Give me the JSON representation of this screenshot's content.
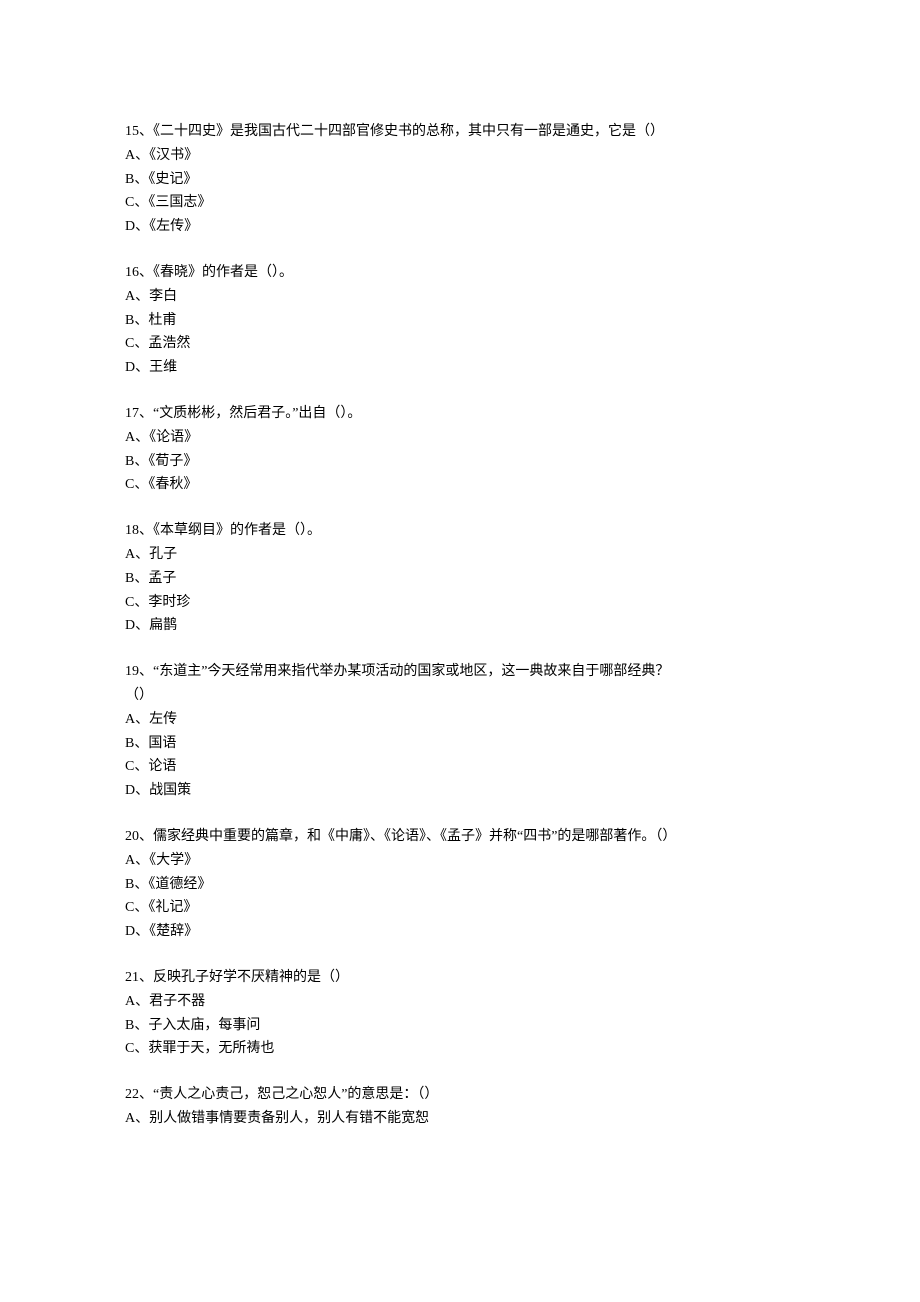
{
  "questions": [
    {
      "number": "15",
      "text": "《二十四史》是我国古代二十四部官修史书的总称，其中只有一部是通史，它是（）",
      "extra": null,
      "options": [
        "A、《汉书》",
        "B、《史记》",
        "C、《三国志》",
        "D、《左传》"
      ]
    },
    {
      "number": "16",
      "text": "《春晓》的作者是（）。",
      "extra": null,
      "options": [
        "A、李白",
        "B、杜甫",
        "C、孟浩然",
        "D、王维"
      ]
    },
    {
      "number": "17",
      "text": "“文质彬彬，然后君子。”出自（）。",
      "extra": null,
      "options": [
        "A、《论语》",
        "B、《荀子》",
        "C、《春秋》"
      ]
    },
    {
      "number": "18",
      "text": "《本草纲目》的作者是（）。",
      "extra": null,
      "options": [
        "A、孔子",
        "B、孟子",
        "C、李时珍",
        "D、扁鹊"
      ]
    },
    {
      "number": "19",
      "text": "“东道主”今天经常用来指代举办某项活动的国家或地区，这一典故来自于哪部经典？",
      "extra": "（）",
      "options": [
        "A、左传",
        "B、国语",
        "C、论语",
        "D、战国策"
      ]
    },
    {
      "number": "20",
      "text": "儒家经典中重要的篇章，和《中庸》、《论语》、《孟子》并称“四书”的是哪部著作。（）",
      "extra": null,
      "options": [
        "A、《大学》",
        "B、《道德经》",
        "C、《礼记》",
        "D、《楚辞》"
      ]
    },
    {
      "number": "21",
      "text": "反映孔子好学不厌精神的是（）",
      "extra": null,
      "options": [
        "A、君子不器",
        "B、子入太庙，每事问",
        "C、获罪于天，无所祷也"
      ]
    },
    {
      "number": "22",
      "text": "“责人之心责己，恕己之心恕人”的意思是：（）",
      "extra": null,
      "options": [
        "A、别人做错事情要责备别人，别人有错不能宽恕"
      ]
    }
  ]
}
